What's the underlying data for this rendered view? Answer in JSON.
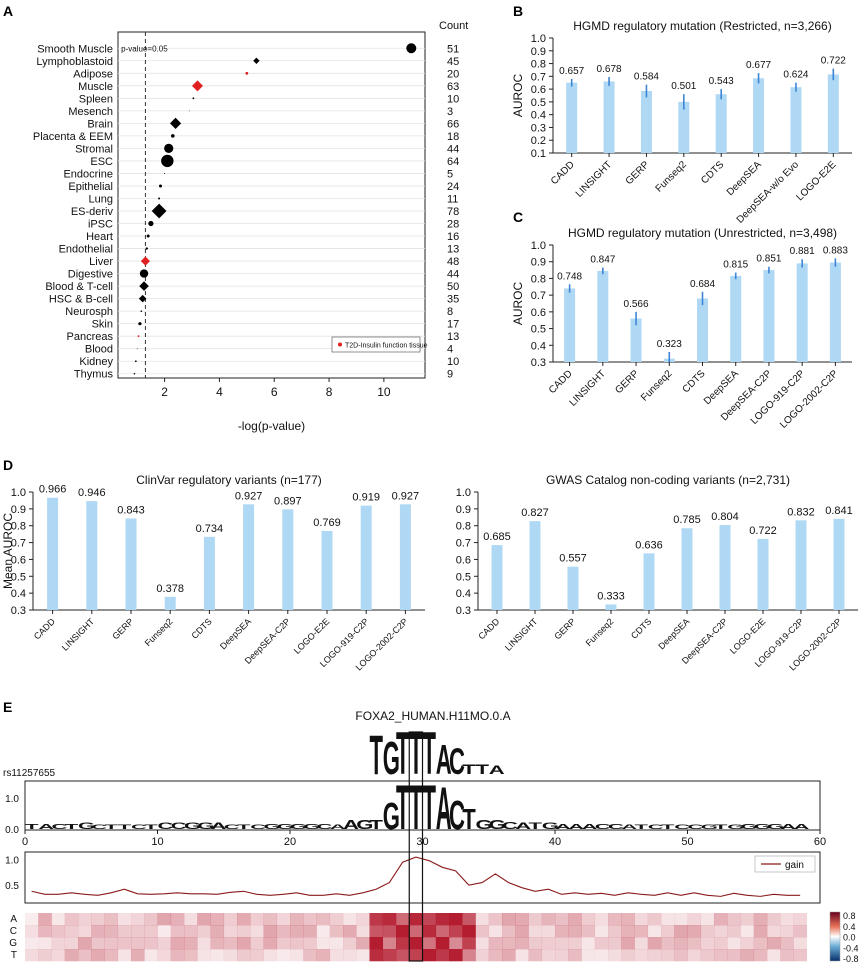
{
  "panel_letters": [
    "A",
    "B",
    "C",
    "D",
    "E"
  ],
  "colors": {
    "bar": "#aed8f3",
    "err": "#3d86d6",
    "red": "#e02020",
    "black": "#000000",
    "gain": "#8b1a1a",
    "heat_pos": "#b2182b",
    "heat_neg": "#2166ac"
  },
  "chart_data": [
    {
      "id": "A",
      "type": "scatter",
      "title": "",
      "xlabel": "-log(p-value)",
      "ylabel": "",
      "count_header": "Count",
      "threshold_label": "p-value=0.05",
      "threshold_x": 1.3,
      "xlim": [
        0.3,
        11.5
      ],
      "xticks": [
        2,
        4,
        6,
        8,
        10
      ],
      "legend": {
        "label": "T2D-Insulin function tissue",
        "placement": "bottom-right"
      },
      "categories": [
        "Smooth Muscle",
        "Lymphoblastoid",
        "Adipose",
        "Muscle",
        "Spleen",
        "Mesench",
        "Brain",
        "Placenta & EEM",
        "Stromal",
        "ESC",
        "Endocrine",
        "Epithelial",
        "Lung",
        "ES-deriv",
        "iPSC",
        "Heart",
        "Endothelial",
        "Liver",
        "Digestive",
        "Blood & T-cell",
        "HSC & B-cell",
        "Neurosph",
        "Skin",
        "Pancreas",
        "Blood",
        "Kidney",
        "Thymus"
      ],
      "counts": [
        "51",
        "45",
        "20",
        "63",
        "10",
        "3",
        "66",
        "18",
        "44",
        "64",
        "5",
        "24",
        "11",
        "78",
        "28",
        "16",
        "13",
        "48",
        "44",
        "50",
        "35",
        "8",
        "17",
        "13",
        "4",
        "10",
        "9"
      ],
      "x": [
        11.0,
        5.35,
        5.0,
        3.2,
        3.05,
        2.9,
        2.4,
        2.3,
        2.15,
        2.1,
        2.0,
        1.85,
        1.8,
        1.8,
        1.5,
        1.4,
        1.35,
        1.3,
        1.25,
        1.25,
        1.2,
        1.15,
        1.1,
        1.05,
        1.0,
        0.95,
        0.9
      ],
      "size": [
        5,
        3.2,
        1.4,
        5.5,
        0.9,
        0.4,
        5.6,
        1.8,
        4.6,
        6.2,
        0.5,
        1.5,
        1.0,
        7.4,
        2.6,
        1.5,
        1.2,
        4.6,
        4.2,
        4.8,
        3.8,
        0.8,
        1.6,
        0.9,
        0.4,
        0.9,
        0.8
      ],
      "shape": [
        "circle",
        "diamond",
        "circle",
        "diamond",
        "circle",
        "circle",
        "diamond",
        "circle",
        "circle",
        "circle",
        "circle",
        "circle",
        "circle",
        "diamond",
        "circle",
        "circle",
        "circle",
        "diamond",
        "circle",
        "diamond",
        "diamond",
        "circle",
        "circle",
        "circle",
        "circle",
        "circle",
        "circle"
      ],
      "highlight": [
        false,
        false,
        true,
        true,
        false,
        false,
        false,
        false,
        false,
        false,
        false,
        false,
        false,
        false,
        false,
        false,
        false,
        true,
        false,
        false,
        false,
        false,
        false,
        true,
        false,
        false,
        false
      ]
    },
    {
      "id": "B",
      "type": "bar",
      "title": "HGMD regulatory mutation (Restricted, n=3,266)",
      "ylabel": "AUROC",
      "xlabel": "",
      "ylim": [
        0.1,
        1.0
      ],
      "yticks": [
        0.1,
        0.2,
        0.3,
        0.4,
        0.5,
        0.6,
        0.7,
        0.8,
        0.9,
        1.0
      ],
      "categories": [
        "CADD",
        "LINSIGHT",
        "GERP",
        "Funseq2",
        "CDTS",
        "DeepSEA",
        "DeepSEA-w/o Evo",
        "LOGO-E2E"
      ],
      "values": [
        0.657,
        0.678,
        0.584,
        0.501,
        0.543,
        0.677,
        0.624,
        0.722
      ],
      "labels": [
        "0.657",
        "0.678",
        "0.584",
        "0.501",
        "0.543",
        "0.677",
        "0.624",
        "0.722"
      ],
      "plotted": [
        0.65,
        0.66,
        0.585,
        0.5,
        0.56,
        0.685,
        0.615,
        0.715
      ],
      "err": [
        0.03,
        0.035,
        0.05,
        0.06,
        0.04,
        0.04,
        0.035,
        0.045
      ]
    },
    {
      "id": "C",
      "type": "bar",
      "title": "HGMD regulatory mutation (Unrestricted, n=3,498)",
      "ylabel": "AUROC",
      "xlabel": "",
      "ylim": [
        0.3,
        1.0
      ],
      "yticks": [
        0.3,
        0.4,
        0.5,
        0.6,
        0.7,
        0.8,
        0.9,
        1.0
      ],
      "categories": [
        "CADD",
        "LINSIGHT",
        "GERP",
        "Funseq2",
        "CDTS",
        "DeepSEA",
        "DeepSEA-C2P",
        "LOGO-919-C2P",
        "LOGO-2002-C2P"
      ],
      "values": [
        0.748,
        0.847,
        0.566,
        0.323,
        0.684,
        0.815,
        0.851,
        0.881,
        0.883
      ],
      "labels": [
        "0.748",
        "0.847",
        "0.566",
        "0.323",
        "0.684",
        "0.815",
        "0.851",
        "0.881",
        "0.883"
      ],
      "plotted": [
        0.74,
        0.845,
        0.56,
        0.32,
        0.68,
        0.815,
        0.85,
        0.89,
        0.895
      ],
      "err": [
        0.025,
        0.02,
        0.04,
        0.04,
        0.04,
        0.02,
        0.02,
        0.025,
        0.025
      ]
    },
    {
      "id": "D1",
      "type": "bar",
      "title": "ClinVar regulatory variants (n=177)",
      "ylabel": "Mean AUROC",
      "xlabel": "",
      "ylim": [
        0.3,
        1.0
      ],
      "yticks": [
        0.3,
        0.4,
        0.5,
        0.6,
        0.7,
        0.8,
        0.9,
        1.0
      ],
      "categories": [
        "CADD",
        "LINSIGHT",
        "GERP",
        "Funseq2",
        "CDTS",
        "DeepSEA",
        "DeepSEA-C2P",
        "LOGO-E2E",
        "LOGO-919-C2P",
        "LOGO-2002-C2P"
      ],
      "values": [
        0.966,
        0.946,
        0.843,
        0.378,
        0.734,
        0.927,
        0.897,
        0.769,
        0.919,
        0.927
      ],
      "labels": [
        "0.966",
        "0.946",
        "0.843",
        "0.378",
        "0.734",
        "0.927",
        "0.897",
        "0.769",
        "0.919",
        "0.927"
      ]
    },
    {
      "id": "D2",
      "type": "bar",
      "title": "GWAS Catalog non-coding variants (n=2,731)",
      "ylabel": "",
      "xlabel": "",
      "ylim": [
        0.3,
        1.0
      ],
      "yticks": [
        0.3,
        0.4,
        0.5,
        0.6,
        0.7,
        0.8,
        0.9,
        1.0
      ],
      "categories": [
        "CADD",
        "LINSIGHT",
        "GERP",
        "Funseq2",
        "CDTS",
        "DeepSEA",
        "DeepSEA-C2P",
        "LOGO-E2E",
        "LOGO-919-C2P",
        "LOGO-2002-C2P"
      ],
      "values": [
        0.685,
        0.827,
        0.557,
        0.333,
        0.636,
        0.785,
        0.804,
        0.722,
        0.832,
        0.841
      ],
      "labels": [
        "0.685",
        "0.827",
        "0.557",
        "0.333",
        "0.636",
        "0.785",
        "0.804",
        "0.722",
        "0.832",
        "0.841"
      ]
    },
    {
      "id": "E",
      "type": "line",
      "motif_title": "FOXA2_HUMAN.H11MO.0.A",
      "variant_label": "rs11257655",
      "motif_letters": "TGTTTACTTA",
      "motif_heights": [
        1.2,
        1.0,
        1.3,
        1.3,
        1.3,
        0.9,
        0.8,
        0.3,
        0.3,
        0.25
      ],
      "sequence": "TACTGCTTCTCCGGACTCGGGGCAAGTGTTTACTGGCATGAAACCATCTCCGTGGGGAA",
      "seq_heights": [
        0.12,
        0.12,
        0.12,
        0.12,
        0.14,
        0.1,
        0.1,
        0.1,
        0.1,
        0.1,
        0.14,
        0.14,
        0.14,
        0.14,
        0.14,
        0.1,
        0.1,
        0.1,
        0.12,
        0.12,
        0.12,
        0.12,
        0.12,
        0.1,
        0.2,
        0.2,
        0.2,
        0.6,
        1.0,
        1.0,
        1.0,
        0.95,
        0.65,
        0.45,
        0.2,
        0.2,
        0.16,
        0.14,
        0.14,
        0.14,
        0.12,
        0.12,
        0.12,
        0.12,
        0.12,
        0.1,
        0.1,
        0.1,
        0.1,
        0.1,
        0.1,
        0.1,
        0.1,
        0.1,
        0.12,
        0.12,
        0.12,
        0.12,
        0.12
      ],
      "logo_yticks": [
        "1.0",
        "0.0"
      ],
      "xticks": [
        0,
        10,
        20,
        30,
        40,
        50,
        60
      ],
      "xlim": [
        0,
        60
      ],
      "gain_yticks": [
        "1.0",
        "0.5"
      ],
      "gain_ylim": [
        0.15,
        1.15
      ],
      "legend": "gain",
      "x": [
        1,
        2,
        3,
        4,
        5,
        6,
        7,
        8,
        9,
        10,
        11,
        12,
        13,
        14,
        15,
        16,
        17,
        18,
        19,
        20,
        21,
        22,
        23,
        24,
        25,
        26,
        27,
        28,
        29,
        30,
        31,
        32,
        33,
        34,
        35,
        36,
        37,
        38,
        39,
        40,
        41,
        42,
        43,
        44,
        45,
        46,
        47,
        48,
        49,
        50,
        51,
        52,
        53,
        54,
        55,
        56,
        57,
        58,
        59
      ],
      "gain": [
        0.38,
        0.32,
        0.32,
        0.35,
        0.32,
        0.3,
        0.35,
        0.42,
        0.33,
        0.32,
        0.33,
        0.35,
        0.33,
        0.33,
        0.32,
        0.36,
        0.38,
        0.32,
        0.3,
        0.32,
        0.35,
        0.3,
        0.3,
        0.33,
        0.3,
        0.35,
        0.42,
        0.55,
        0.95,
        1.05,
        0.98,
        0.85,
        0.78,
        0.5,
        0.55,
        0.72,
        0.55,
        0.45,
        0.38,
        0.42,
        0.32,
        0.35,
        0.32,
        0.34,
        0.3,
        0.35,
        0.32,
        0.3,
        0.35,
        0.3,
        0.35,
        0.3,
        0.28,
        0.34,
        0.3,
        0.28,
        0.32,
        0.3,
        0.3
      ],
      "heat_rows": [
        "A",
        "C",
        "G",
        "T"
      ],
      "colorbar_ticks": [
        "0.8",
        "0.4",
        "0.0",
        "-0.4",
        "-0.8"
      ],
      "highlight_position": 30
    }
  ]
}
